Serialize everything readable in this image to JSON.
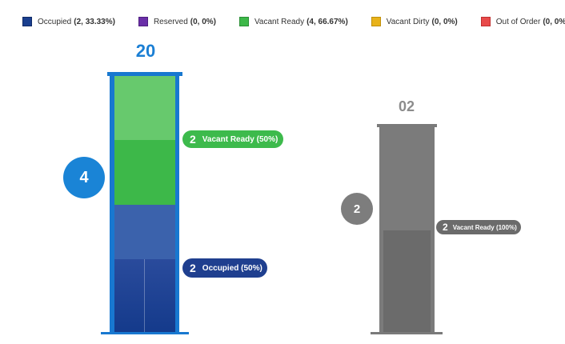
{
  "legend": [
    {
      "label": "Occupied",
      "stats": "(2, 33.33%)",
      "color": "#1a3f8f"
    },
    {
      "label": "Reserved",
      "stats": "(0, 0%)",
      "color": "#6a2fa8"
    },
    {
      "label": "Vacant Ready",
      "stats": "(4, 66.67%)",
      "color": "#3db849"
    },
    {
      "label": "Vacant Dirty",
      "stats": "(0, 0%)",
      "color": "#e8b21a"
    },
    {
      "label": "Out of Order",
      "stats": "(0, 0%)",
      "color": "#e84a4a"
    }
  ],
  "buildings": [
    {
      "title": "20",
      "color": "#1878d0",
      "total": "4",
      "segments": [
        {
          "status": "Vacant Ready",
          "count": "2",
          "label": "Vacant Ready (50%)",
          "share": 0.5,
          "color": "#3db849"
        },
        {
          "status": "Occupied",
          "count": "2",
          "label": "Occupied (50%)",
          "share": 0.5,
          "color": "#1f3f8f"
        }
      ]
    },
    {
      "title": "02",
      "color": "#7b7b7b",
      "total": "2",
      "segments": [
        {
          "status": "Vacant Ready",
          "count": "2",
          "label": "Vacant Ready (100%)",
          "share": 1.0,
          "color": "#6b6b6b"
        }
      ]
    }
  ]
}
